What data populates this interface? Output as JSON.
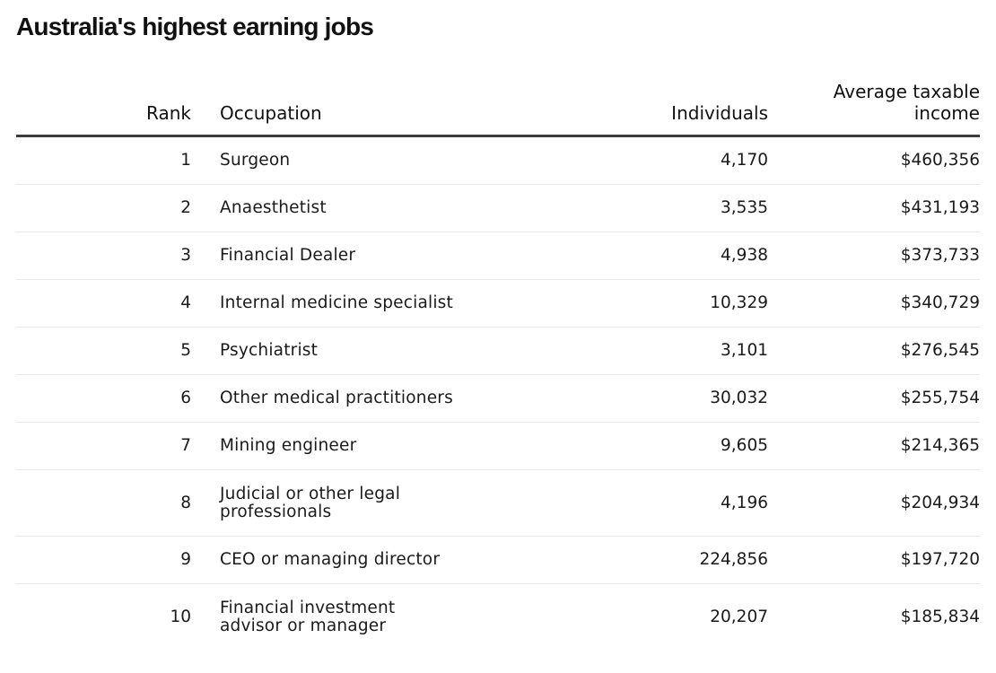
{
  "title": "Australia's highest earning jobs",
  "table": {
    "headers": {
      "rank": "Rank",
      "occupation": "Occupation",
      "individuals": "Individuals",
      "income": "Average taxable income"
    },
    "rows": [
      {
        "rank": "1",
        "occupation": "Surgeon",
        "individuals": "4,170",
        "income": "$460,356"
      },
      {
        "rank": "2",
        "occupation": "Anaesthetist",
        "individuals": "3,535",
        "income": "$431,193"
      },
      {
        "rank": "3",
        "occupation": "Financial Dealer",
        "individuals": "4,938",
        "income": "$373,733"
      },
      {
        "rank": "4",
        "occupation": "Internal medicine specialist",
        "individuals": "10,329",
        "income": "$340,729"
      },
      {
        "rank": "5",
        "occupation": "Psychiatrist",
        "individuals": "3,101",
        "income": "$276,545"
      },
      {
        "rank": "6",
        "occupation": "Other medical practitioners",
        "individuals": "30,032",
        "income": "$255,754"
      },
      {
        "rank": "7",
        "occupation": "Mining engineer",
        "individuals": "9,605",
        "income": "$214,365"
      },
      {
        "rank": "8",
        "occupation": "Judicial or other legal professionals",
        "individuals": "4,196",
        "income": "$204,934"
      },
      {
        "rank": "9",
        "occupation": "CEO or managing director",
        "individuals": "224,856",
        "income": "$197,720"
      },
      {
        "rank": "10",
        "occupation": "Financial investment advisor or manager",
        "individuals": "20,207",
        "income": "$185,834"
      }
    ]
  }
}
